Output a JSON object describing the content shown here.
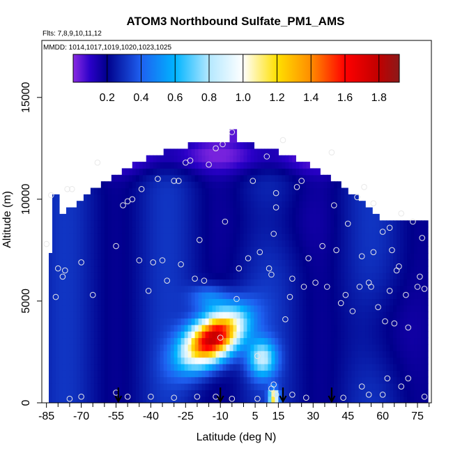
{
  "chart_data": {
    "type": "heatmap",
    "title": "ATOM3 Northbound Sulfate_PM1_AMS",
    "subtitle_flights": "Flts: 7,8,9,10,11,12",
    "subtitle_dates": "MMDD: 1014,1017,1019,1020,1023,1025",
    "xlabel": "Latitude (deg N)",
    "ylabel": "Altitude (m)",
    "xlim": [
      -87,
      81
    ],
    "ylim": [
      0,
      17800
    ],
    "x_ticks": [
      -85,
      -70,
      -55,
      -40,
      -25,
      -10,
      5,
      15,
      30,
      45,
      60,
      75
    ],
    "x_tick_labels": [
      "-85",
      "-70",
      "-55",
      "-40",
      "-25",
      "-10",
      "5",
      "15",
      "30",
      "45",
      "60",
      "75"
    ],
    "x_minor_ticks": [
      -80,
      -75,
      -65,
      -60,
      -50,
      -45,
      -35,
      -30,
      -20,
      -15,
      -5,
      0,
      10,
      20,
      25,
      35,
      40,
      50,
      55,
      65,
      70,
      80
    ],
    "y_ticks": [
      0,
      5000,
      10000,
      15000
    ],
    "y_tick_labels": [
      "0",
      "5000",
      "10000",
      "15000"
    ],
    "colorbar": {
      "ticks": [
        0.2,
        0.4,
        0.6,
        0.8,
        1.0,
        1.2,
        1.4,
        1.6,
        1.8
      ],
      "tick_labels": [
        "0.2",
        "0.4",
        "0.6",
        "0.8",
        "1.0",
        "1.2",
        "1.4",
        "1.6",
        "1.8"
      ],
      "range": [
        0,
        1.92
      ],
      "stops": [
        {
          "value": 0.0,
          "color": "#8a2be2"
        },
        {
          "value": 0.1,
          "color": "#2a00c8"
        },
        {
          "value": 0.2,
          "color": "#00008b"
        },
        {
          "value": 0.4,
          "color": "#1e60f0"
        },
        {
          "value": 0.6,
          "color": "#00b4ff"
        },
        {
          "value": 0.8,
          "color": "#b4e8ff"
        },
        {
          "value": 1.0,
          "color": "#ffffff"
        },
        {
          "value": 1.2,
          "color": "#ffe000"
        },
        {
          "value": 1.4,
          "color": "#ff8c00"
        },
        {
          "value": 1.6,
          "color": "#ff0000"
        },
        {
          "value": 1.8,
          "color": "#c00000"
        },
        {
          "value": 1.92,
          "color": "#8b1a1a"
        }
      ]
    },
    "arrows_latitude": [
      -54,
      -10,
      17,
      38
    ],
    "sample_points": [
      [
        -85,
        7800
      ],
      [
        -83,
        10200
      ],
      [
        -81,
        5200
      ],
      [
        -80,
        6600
      ],
      [
        -78,
        6200
      ],
      [
        -77,
        6500
      ],
      [
        -76,
        10500
      ],
      [
        -74,
        10500
      ],
      [
        -70,
        6900
      ],
      [
        -65,
        5300
      ],
      [
        -63,
        11800
      ],
      [
        -55,
        7700
      ],
      [
        -52,
        9700
      ],
      [
        -50,
        9900
      ],
      [
        -48,
        10000
      ],
      [
        -45,
        7000
      ],
      [
        -44,
        10500
      ],
      [
        -41,
        5500
      ],
      [
        -39,
        6900
      ],
      [
        -37,
        11000
      ],
      [
        -35,
        7000
      ],
      [
        -33,
        6000
      ],
      [
        -30,
        10900
      ],
      [
        -28,
        10900
      ],
      [
        -27,
        6800
      ],
      [
        -25,
        11800
      ],
      [
        -23,
        11900
      ],
      [
        -21,
        6100
      ],
      [
        -19,
        8000
      ],
      [
        -17,
        6000
      ],
      [
        -15,
        11700
      ],
      [
        -12,
        12500
      ],
      [
        -9,
        12700
      ],
      [
        -5,
        13300
      ],
      [
        -8,
        8900
      ],
      [
        -3,
        5100
      ],
      [
        -2,
        6600
      ],
      [
        2,
        7100
      ],
      [
        4,
        10900
      ],
      [
        10,
        12100
      ],
      [
        7,
        7400
      ],
      [
        11,
        6600
      ],
      [
        12,
        6300
      ],
      [
        13,
        8300
      ],
      [
        14,
        9600
      ],
      [
        14,
        10300
      ],
      [
        17,
        12900
      ],
      [
        18,
        4100
      ],
      [
        20,
        5200
      ],
      [
        21,
        6100
      ],
      [
        23,
        10600
      ],
      [
        25,
        10900
      ],
      [
        26,
        5700
      ],
      [
        28,
        7100
      ],
      [
        31,
        5900
      ],
      [
        34,
        7700
      ],
      [
        36,
        5700
      ],
      [
        38,
        12300
      ],
      [
        39,
        9700
      ],
      [
        40,
        7500
      ],
      [
        42,
        4900
      ],
      [
        44,
        5300
      ],
      [
        45,
        8800
      ],
      [
        47,
        4500
      ],
      [
        49,
        10100
      ],
      [
        50,
        5700
      ],
      [
        51,
        7200
      ],
      [
        52,
        10600
      ],
      [
        54,
        5900
      ],
      [
        55,
        5700
      ],
      [
        56,
        7400
      ],
      [
        56,
        9800
      ],
      [
        58,
        4700
      ],
      [
        60,
        8400
      ],
      [
        61,
        4000
      ],
      [
        63,
        5500
      ],
      [
        63,
        8600
      ],
      [
        64,
        7500
      ],
      [
        65,
        3900
      ],
      [
        66,
        6500
      ],
      [
        67,
        6700
      ],
      [
        68,
        9300
      ],
      [
        70,
        5300
      ],
      [
        71,
        3700
      ],
      [
        73,
        8900
      ],
      [
        75,
        5700
      ],
      [
        76,
        6200
      ],
      [
        77,
        8100
      ],
      [
        78,
        5600
      ],
      [
        -10,
        3200
      ],
      [
        6,
        2300
      ],
      [
        13,
        900
      ],
      [
        12,
        700
      ],
      [
        21,
        400
      ],
      [
        14,
        400
      ],
      [
        -75,
        200
      ],
      [
        -70,
        300
      ],
      [
        -55,
        500
      ],
      [
        -50,
        300
      ],
      [
        -40,
        300
      ],
      [
        -30,
        250
      ],
      [
        -20,
        300
      ],
      [
        -12,
        300
      ],
      [
        -5,
        200
      ],
      [
        6,
        200
      ],
      [
        27,
        250
      ],
      [
        43,
        250
      ],
      [
        51,
        800
      ],
      [
        54,
        400
      ],
      [
        60,
        400
      ],
      [
        62,
        1200
      ],
      [
        68,
        800
      ],
      [
        71,
        1200
      ],
      [
        78,
        300
      ]
    ]
  }
}
